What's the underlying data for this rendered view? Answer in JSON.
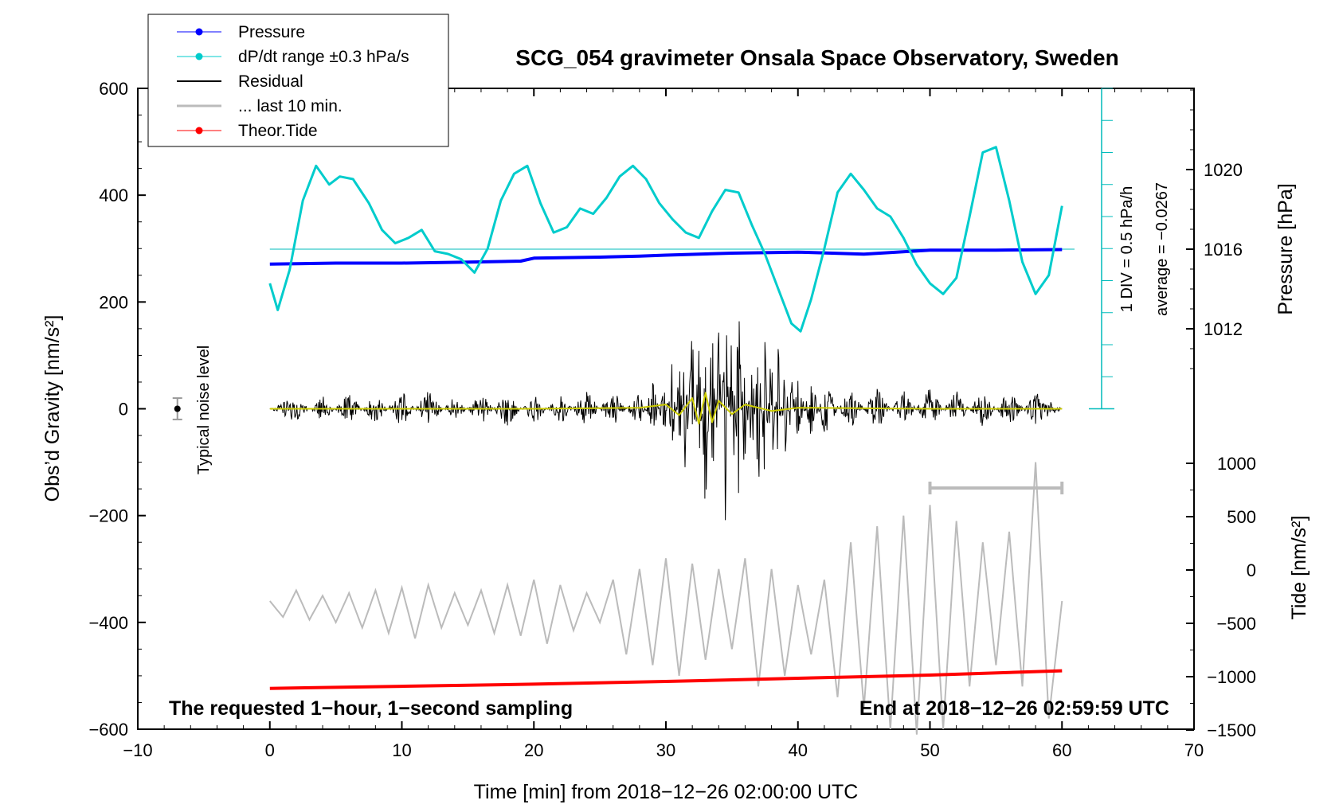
{
  "chart_data": {
    "type": "line",
    "title": "SCG_054 gravimeter Onsala Space Observatory, Sweden",
    "xlabel": "Time [min] from 2018−12−26 02:00:00 UTC",
    "ylabel_left": "Obs’d Gravity [nm/s²]",
    "ylabel_right_top": "Pressure [hPa]",
    "ylabel_right_bottom": "Tide [nm/s²]",
    "xlim": [
      -10,
      70
    ],
    "ylim_left": [
      -600,
      600
    ],
    "x_ticks": [
      -10,
      0,
      10,
      20,
      30,
      40,
      50,
      60,
      70
    ],
    "x_tick_labels": [
      "−10",
      "0",
      "10",
      "20",
      "30",
      "40",
      "50",
      "60",
      "70"
    ],
    "y_left_ticks": [
      600,
      400,
      200,
      0,
      -200,
      -400,
      -600
    ],
    "y_left_tick_labels": [
      "600",
      "400",
      "200",
      "0",
      "−200",
      "−400",
      "−600"
    ],
    "pressure_axis": {
      "ticks": [
        1020,
        1016,
        1012
      ],
      "tick_labels": [
        "1020",
        "1016",
        "1012"
      ],
      "unit": "hPa"
    },
    "tide_axis": {
      "ticks": [
        1000,
        500,
        0,
        -500,
        -1000,
        -1500
      ],
      "tick_labels": [
        "1000",
        "500",
        "0",
        "−500",
        "−1000",
        "−1500"
      ],
      "unit": "nm/s²"
    },
    "dpdt_scale": {
      "label_1": "1 DIV = 0.5 hPa/h",
      "label_2": "average = −0.0267"
    },
    "noise": {
      "label": "Typical noise level",
      "x": -7,
      "y": 0,
      "error": 20
    },
    "legend": {
      "position": "top-left",
      "entries": [
        {
          "label": "Pressure",
          "color": "#0000ff",
          "marker": true
        },
        {
          "label": "dP/dt range ±0.3 hPa/s",
          "color": "#00cccc",
          "marker": true
        },
        {
          "label": "Residual",
          "color": "#000000",
          "marker": false
        },
        {
          "label": "... last 10 min.",
          "color": "#bbbbbb",
          "marker": false
        },
        {
          "label": "Theor.Tide",
          "color": "#ff0000",
          "marker": true
        }
      ]
    },
    "series": [
      {
        "name": "Pressure",
        "color": "#0000ff",
        "axis": "pressure",
        "x": [
          0,
          5,
          10,
          15,
          19,
          20,
          25,
          28,
          30,
          35,
          40,
          45,
          50,
          55,
          60
        ],
        "y": [
          1015.25,
          1015.3,
          1015.3,
          1015.35,
          1015.4,
          1015.55,
          1015.6,
          1015.65,
          1015.7,
          1015.8,
          1015.85,
          1015.75,
          1015.95,
          1015.95,
          1015.98
        ]
      },
      {
        "name": "dP/dt range ±0.3 hPa/s",
        "color": "#00cccc",
        "axis": "left",
        "x": [
          0,
          0.6,
          1.5,
          2.5,
          3.5,
          4.5,
          5.3,
          6.3,
          7.5,
          8.5,
          9.5,
          10.5,
          11.5,
          12.5,
          13.5,
          14.5,
          15.5,
          16.5,
          17.5,
          18.5,
          19.5,
          20.5,
          21.5,
          22.5,
          23.5,
          24.5,
          25.5,
          26.5,
          27.5,
          28.5,
          29.5,
          30.5,
          31.5,
          32.5,
          33.5,
          34.5,
          35.5,
          36.5,
          37.5,
          38.5,
          39.5,
          40.2,
          41,
          42,
          43,
          44,
          45,
          46,
          47,
          48,
          49,
          50,
          51,
          52,
          53,
          54,
          55,
          56,
          57,
          58,
          59,
          60
        ],
        "y": [
          235,
          185,
          260,
          390,
          455,
          420,
          435,
          430,
          385,
          335,
          310,
          320,
          335,
          295,
          290,
          280,
          255,
          300,
          390,
          440,
          455,
          385,
          330,
          340,
          375,
          365,
          395,
          435,
          455,
          430,
          385,
          355,
          330,
          320,
          370,
          410,
          405,
          345,
          290,
          225,
          160,
          145,
          205,
          300,
          405,
          440,
          410,
          375,
          360,
          320,
          270,
          235,
          215,
          245,
          360,
          480,
          490,
          390,
          275,
          215,
          250,
          380
        ]
      },
      {
        "name": "Residual",
        "color": "#000000",
        "axis": "left",
        "x": [
          0,
          2,
          4,
          6,
          8,
          10,
          12,
          14,
          16,
          18,
          20,
          22,
          24,
          26,
          28,
          29,
          30,
          30.5,
          31,
          31.5,
          32,
          32.5,
          33,
          33.5,
          34,
          34.5,
          35,
          35.5,
          36,
          36.5,
          37,
          37.5,
          38,
          38.5,
          39,
          39.5,
          40,
          41,
          42,
          44,
          46,
          48,
          50,
          52,
          54,
          56,
          58,
          60
        ],
        "y": [
          0,
          25,
          -25,
          30,
          -30,
          35,
          -35,
          25,
          -30,
          35,
          -30,
          30,
          -35,
          35,
          -35,
          50,
          -60,
          100,
          -120,
          150,
          -180,
          180,
          -220,
          220,
          -200,
          260,
          -230,
          210,
          -200,
          180,
          -170,
          150,
          -150,
          120,
          -110,
          80,
          -70,
          60,
          -50,
          40,
          -40,
          35,
          -40,
          35,
          -35,
          35,
          -30,
          0
        ]
      },
      {
        "name": "Filtered residual",
        "color": "#cccc00",
        "axis": "left",
        "x": [
          0,
          10,
          20,
          28,
          30,
          31,
          32,
          32.5,
          33,
          33.5,
          34,
          35,
          36,
          38,
          40,
          50,
          60
        ],
        "y": [
          0,
          0,
          0,
          2,
          8,
          -12,
          20,
          -28,
          30,
          -25,
          15,
          -10,
          8,
          -4,
          2,
          0,
          0
        ]
      },
      {
        "name": "... last 10 min.",
        "color": "#bbbbbb",
        "axis": "magnified",
        "x": [
          0,
          1,
          2,
          3,
          4,
          5,
          6,
          7,
          8,
          9,
          10,
          11,
          12,
          13,
          14,
          15,
          16,
          17,
          18,
          19,
          20,
          21,
          22,
          23,
          24,
          25,
          26,
          27,
          28,
          29,
          30,
          31,
          32,
          33,
          34,
          35,
          36,
          37,
          38,
          39,
          40,
          41,
          42,
          43,
          44,
          45,
          46,
          47,
          48,
          49,
          50,
          51,
          52,
          53,
          54,
          55,
          56,
          57,
          58,
          59,
          60
        ],
        "y": [
          -360,
          -390,
          -340,
          -395,
          -350,
          -400,
          -345,
          -410,
          -340,
          -420,
          -335,
          -430,
          -330,
          -410,
          -345,
          -405,
          -340,
          -420,
          -330,
          -425,
          -320,
          -440,
          -330,
          -415,
          -345,
          -400,
          -320,
          -460,
          -300,
          -480,
          -280,
          -500,
          -290,
          -470,
          -300,
          -450,
          -280,
          -520,
          -300,
          -500,
          -330,
          -460,
          -320,
          -540,
          -250,
          -560,
          -220,
          -600,
          -200,
          -610,
          -180,
          -600,
          -210,
          -520,
          -250,
          -480,
          -230,
          -520,
          -100,
          -580,
          -360
        ]
      },
      {
        "name": "Theor.Tide",
        "color": "#ff0000",
        "axis": "tide",
        "x": [
          0,
          10,
          20,
          30,
          40,
          50,
          60
        ],
        "y": [
          -1110,
          -1090,
          -1070,
          -1045,
          -1015,
          -985,
          -945
        ]
      }
    ],
    "last_10min_bracket": {
      "x_start": 50,
      "x_end": 60
    },
    "annotation_left": "The requested 1−hour, 1−second sampling",
    "annotation_right": "End at 2018−12−26 02:59:59 UTC"
  }
}
